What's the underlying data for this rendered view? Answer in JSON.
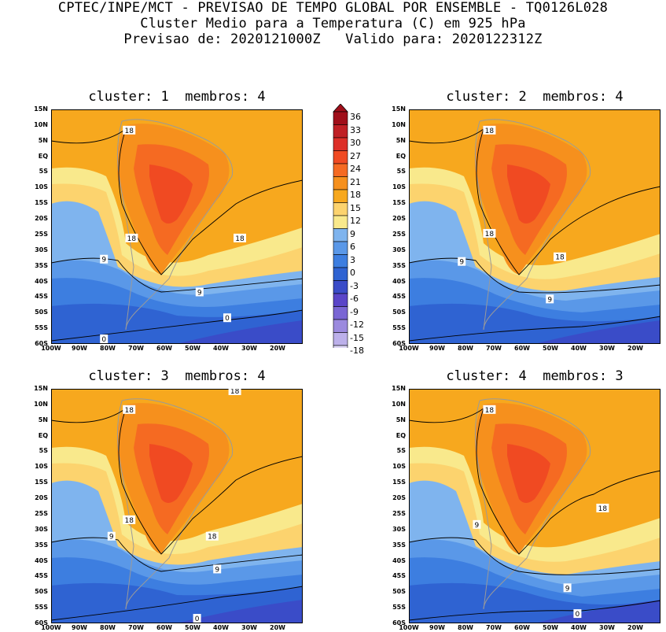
{
  "header": {
    "line1": "CPTEC/INPE/MCT - PREVISAO DE TEMPO GLOBAL POR ENSEMBLE - TQ0126L028",
    "line2": "Cluster Medio para a Temperatura (C) em 925 hPa",
    "line3": "Previsao de: 2020121000Z   Valido para: 2020122312Z"
  },
  "panels": [
    {
      "title": "cluster: 1  membros: 4",
      "contour_labels": [
        "18",
        "18",
        "18",
        "9",
        "9",
        "0",
        "0"
      ]
    },
    {
      "title": "cluster: 2  membros: 4",
      "contour_labels": [
        "18",
        "18",
        "18",
        "9",
        "9"
      ]
    },
    {
      "title": "cluster: 3  membros: 4",
      "contour_labels": [
        "18",
        "18",
        "18",
        "18",
        "9",
        "9",
        "0"
      ]
    },
    {
      "title": "cluster: 4  membros: 3",
      "contour_labels": [
        "18",
        "18",
        "9",
        "9",
        "0"
      ]
    }
  ],
  "lat_labels": [
    "15N",
    "10N",
    "5N",
    "EQ",
    "5S",
    "10S",
    "15S",
    "20S",
    "25S",
    "30S",
    "35S",
    "40S",
    "45S",
    "50S",
    "55S",
    "60S"
  ],
  "lon_labels": [
    "100W",
    "90W",
    "80W",
    "70W",
    "60W",
    "50W",
    "40W",
    "30W",
    "20W"
  ],
  "colorbar": {
    "levels": [
      "36",
      "33",
      "30",
      "27",
      "24",
      "21",
      "18",
      "15",
      "12",
      "9",
      "6",
      "3",
      "0",
      "-3",
      "-6",
      "-9",
      "-12",
      "-15",
      "-18"
    ],
    "colors": [
      "#a00f1a",
      "#c02025",
      "#dd2f28",
      "#f04a22",
      "#f56a22",
      "#f6901d",
      "#f7a81e",
      "#fcd36e",
      "#f9e98c",
      "#7fb4ee",
      "#5a98e8",
      "#3d7ee0",
      "#2f63d2",
      "#3a4cc8",
      "#5a45c8",
      "#7a66d4",
      "#9b8ade",
      "#bcb0ea",
      "#ddd6f5"
    ]
  }
}
